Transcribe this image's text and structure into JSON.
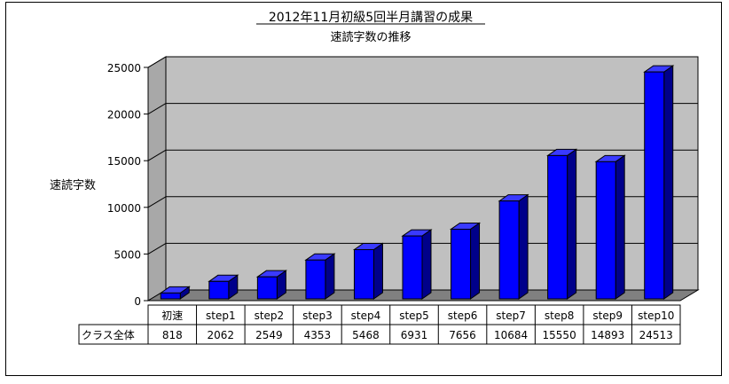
{
  "chart_data": {
    "type": "bar",
    "title": "2012年11月初級5回半月講習の成果",
    "subtitle": "速読字数の推移",
    "ylabel": "速読字数",
    "xlabel": "",
    "ylim": [
      0,
      25000
    ],
    "yticks": [
      0,
      5000,
      10000,
      15000,
      20000,
      25000
    ],
    "categories": [
      "初速",
      "step1",
      "step2",
      "step3",
      "step4",
      "step5",
      "step6",
      "step7",
      "step8",
      "step9",
      "step10"
    ],
    "series": [
      {
        "name": "クラス全体",
        "values": [
          818,
          2062,
          2549,
          4353,
          5468,
          6931,
          7656,
          10684,
          15550,
          14893,
          24513
        ]
      }
    ],
    "colors": {
      "bar_front": "#0000ff",
      "bar_side": "#00008a",
      "bar_top": "#3a3aff",
      "wall": "#c0c0c0",
      "floor": "#808080"
    },
    "grid": true,
    "legend": "data-table"
  }
}
